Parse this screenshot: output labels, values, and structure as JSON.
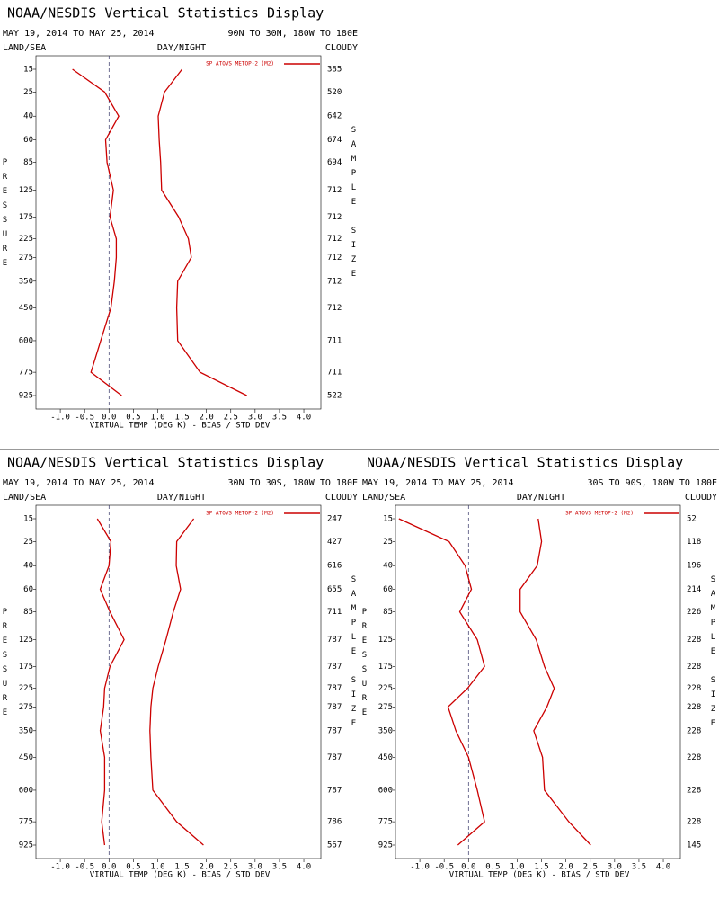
{
  "chart_data": [
    {
      "type": "line",
      "title": "NOAA/NESDIS Vertical Statistics Display",
      "subtitle": "MAY 19, 2014 TO MAY 25, 2014",
      "region": "90N TO 30N, 180W TO 180E",
      "land_sea": "LAND/SEA",
      "day_night": "DAY/NIGHT",
      "cloud": "CLOUDY",
      "ylabel": "PRESSURE",
      "y2label": "SAMPLE SIZE",
      "xlabel": "VIRTUAL TEMP (DEG K) - BIAS / STD DEV",
      "y": [
        15,
        25,
        40,
        60,
        85,
        125,
        175,
        225,
        275,
        350,
        450,
        600,
        775,
        925
      ],
      "ylim": [
        15,
        925
      ],
      "sample_size": [
        385,
        520,
        642,
        674,
        694,
        712,
        712,
        712,
        712,
        712,
        712,
        711,
        711,
        522
      ],
      "series": [
        {
          "name": "SP ATOVS METOP-2 (M2)",
          "color": "#cc0000",
          "values": [
            -0.75,
            -0.09,
            0.2,
            -0.07,
            -0.04,
            0.09,
            0.02,
            0.15,
            0.15,
            0.11,
            0.04,
            -0.17,
            -0.37,
            0.26
          ]
        },
        {
          "color": "#cc0000",
          "values": [
            1.5,
            1.14,
            1.01,
            1.03,
            1.06,
            1.08,
            1.43,
            1.63,
            1.69,
            1.41,
            1.39,
            1.41,
            1.87,
            2.83
          ]
        }
      ],
      "xlim": [
        -1.5,
        4.35
      ],
      "xticks": [
        {
          "value": -1,
          "label": "-1.0"
        },
        {
          "value": -0.5,
          "label": "-0.5"
        },
        {
          "value": 0,
          "label": "0.0"
        },
        {
          "value": 0.5,
          "label": "0.5"
        },
        {
          "value": 1,
          "label": "1.0"
        },
        {
          "value": 1.5,
          "label": "1.5"
        },
        {
          "value": 2,
          "label": "2.0"
        },
        {
          "value": 2.5,
          "label": "2.5"
        },
        {
          "value": 3,
          "label": "3.0"
        },
        {
          "value": 3.5,
          "label": "3.5"
        },
        {
          "value": 4,
          "label": "4.0"
        }
      ]
    },
    {
      "type": "line",
      "title": "NOAA/NESDIS Vertical Statistics Display",
      "subtitle": "MAY 19, 2014 TO MAY 25, 2014",
      "region": "30N TO 30S, 180W TO 180E",
      "land_sea": "LAND/SEA",
      "day_night": "DAY/NIGHT",
      "cloud": "CLOUDY",
      "ylabel": "PRESSURE",
      "y2label": "SAMPLE SIZE",
      "xlabel": "VIRTUAL TEMP (DEG K) - BIAS / STD DEV",
      "y": [
        15,
        25,
        40,
        60,
        85,
        125,
        175,
        225,
        275,
        350,
        450,
        600,
        775,
        925
      ],
      "ylim": [
        15,
        925
      ],
      "sample_size": [
        247,
        427,
        616,
        655,
        711,
        787,
        787,
        787,
        787,
        787,
        787,
        787,
        786,
        567
      ],
      "series": [
        {
          "name": "SP ATOVS METOP-2 (M2)",
          "color": "#cc0000",
          "values": [
            -0.24,
            0.04,
            0,
            -0.18,
            0.02,
            0.31,
            0.02,
            -0.09,
            -0.11,
            -0.18,
            -0.09,
            -0.09,
            -0.15,
            -0.09
          ]
        },
        {
          "color": "#cc0000",
          "values": [
            1.74,
            1.39,
            1.38,
            1.47,
            1.32,
            1.17,
            1.01,
            0.9,
            0.86,
            0.84,
            0.86,
            0.9,
            1.39,
            1.94
          ]
        }
      ],
      "xlim": [
        -1.5,
        4.35
      ],
      "xticks": [
        {
          "value": -1,
          "label": "-1.0"
        },
        {
          "value": -0.5,
          "label": "-0.5"
        },
        {
          "value": 0,
          "label": "0.0"
        },
        {
          "value": 0.5,
          "label": "0.5"
        },
        {
          "value": 1,
          "label": "1.0"
        },
        {
          "value": 1.5,
          "label": "1.5"
        },
        {
          "value": 2,
          "label": "2.0"
        },
        {
          "value": 2.5,
          "label": "2.5"
        },
        {
          "value": 3,
          "label": "3.0"
        },
        {
          "value": 3.5,
          "label": "3.5"
        },
        {
          "value": 4,
          "label": "4.0"
        }
      ]
    },
    {
      "type": "line",
      "title": "NOAA/NESDIS Vertical Statistics Display",
      "subtitle": "MAY 19, 2014 TO MAY 25, 2014",
      "region": "30S TO 90S, 180W TO 180E",
      "land_sea": "LAND/SEA",
      "day_night": "DAY/NIGHT",
      "cloud": "CLOUDY",
      "ylabel": "PRESSURE",
      "y2label": "SAMPLE SIZE",
      "xlabel": "VIRTUAL TEMP (DEG K) - BIAS / STD DEV",
      "y": [
        15,
        25,
        40,
        60,
        85,
        125,
        175,
        225,
        275,
        350,
        450,
        600,
        775,
        925
      ],
      "ylim": [
        15,
        925
      ],
      "sample_size": [
        52,
        118,
        196,
        214,
        226,
        228,
        228,
        228,
        228,
        228,
        228,
        228,
        228,
        145
      ],
      "series": [
        {
          "name": "SP ATOVS METOP-2 (M2)",
          "color": "#cc0000",
          "values": [
            -1.43,
            -0.4,
            -0.07,
            0.06,
            -0.18,
            0.18,
            0.33,
            -0.02,
            -0.42,
            -0.26,
            0,
            0.18,
            0.33,
            -0.22
          ]
        },
        {
          "color": "#cc0000",
          "values": [
            1.43,
            1.5,
            1.41,
            1.06,
            1.06,
            1.39,
            1.56,
            1.76,
            1.61,
            1.34,
            1.52,
            1.56,
            2.06,
            2.51
          ]
        }
      ],
      "xlim": [
        -1.5,
        4.35
      ],
      "xticks": [
        {
          "value": -1,
          "label": "-1.0"
        },
        {
          "value": -0.5,
          "label": "-0.5"
        },
        {
          "value": 0,
          "label": "0.0"
        },
        {
          "value": 0.5,
          "label": "0.5"
        },
        {
          "value": 1,
          "label": "1.0"
        },
        {
          "value": 1.5,
          "label": "1.5"
        },
        {
          "value": 2,
          "label": "2.0"
        },
        {
          "value": 2.5,
          "label": "2.5"
        },
        {
          "value": 3,
          "label": "3.0"
        },
        {
          "value": 3.5,
          "label": "3.5"
        },
        {
          "value": 4,
          "label": "4.0"
        }
      ]
    }
  ]
}
